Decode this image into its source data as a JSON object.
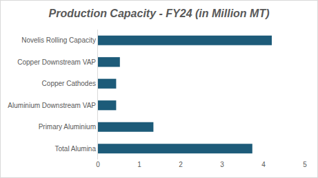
{
  "chart_data": {
    "type": "bar",
    "orientation": "horizontal",
    "title": "Production Capacity - FY24 (in Million MT)",
    "categories": [
      "Total Alumina",
      "Primary Aluminium",
      "Aluminium Downstream VAP",
      "Copper Cathodes",
      "Copper Downstream VAP",
      "Novelis Rolling Capacity"
    ],
    "values": [
      3.73,
      1.34,
      0.44,
      0.44,
      0.53,
      4.2
    ],
    "color": "#1d5b79",
    "xlim": [
      0,
      5
    ],
    "xticks": [
      0,
      1,
      2,
      3,
      4,
      5
    ],
    "grid": false
  }
}
